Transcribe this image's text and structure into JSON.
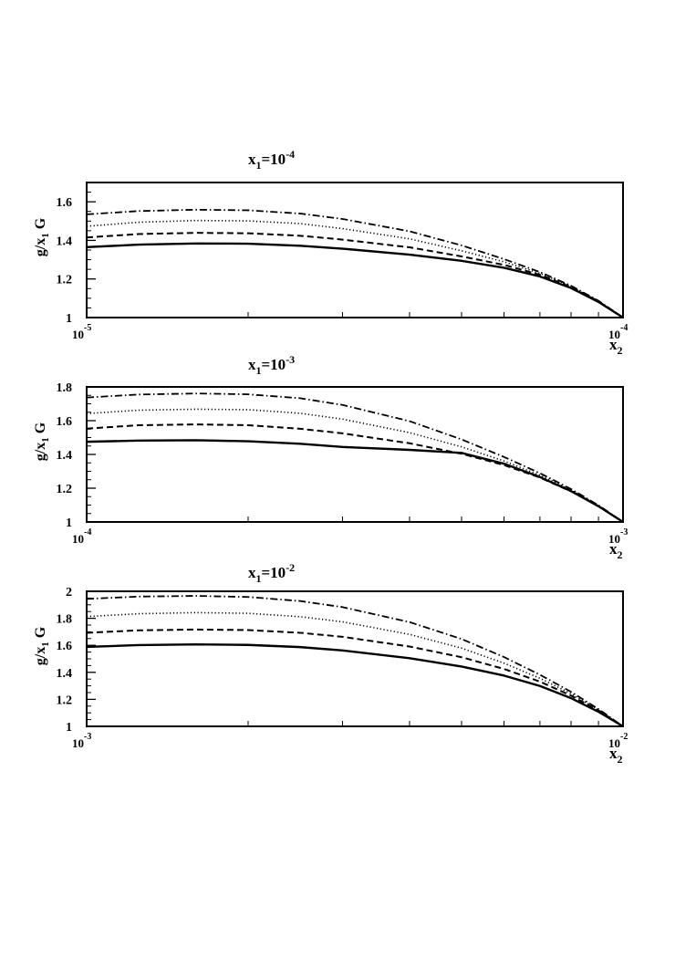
{
  "chart_data": [
    {
      "type": "line",
      "title": {
        "base": "x",
        "sub": "1",
        "mid": "=10",
        "sup": "-4"
      },
      "ylabel": {
        "base": "g/x",
        "sub": "1",
        "tail": " G"
      },
      "xlabel": {
        "base": "x",
        "sub": "2"
      },
      "xscale": "log",
      "xlim": [
        1e-05,
        0.0001
      ],
      "ylim": [
        1.0,
        1.7
      ],
      "yticks": [
        "1",
        "1.2",
        "1.4",
        "1.6"
      ],
      "xtick_labels": [
        {
          "base": "10",
          "sup": "-5"
        },
        {
          "base": "10",
          "sup": "-4"
        }
      ],
      "series": [
        {
          "style": "solid",
          "points": [
            [
              1e-05,
              1.365
            ],
            [
              1.25e-05,
              1.378
            ],
            [
              1.6e-05,
              1.384
            ],
            [
              2e-05,
              1.383
            ],
            [
              2.5e-05,
              1.372
            ],
            [
              3e-05,
              1.357
            ],
            [
              4e-05,
              1.326
            ],
            [
              5e-05,
              1.294
            ],
            [
              6e-05,
              1.258
            ],
            [
              7e-05,
              1.213
            ],
            [
              8e-05,
              1.153
            ],
            [
              9e-05,
              1.081
            ],
            [
              0.0001,
              1.0
            ]
          ]
        },
        {
          "style": "dashed",
          "points": [
            [
              1e-05,
              1.415
            ],
            [
              1.25e-05,
              1.433
            ],
            [
              1.6e-05,
              1.439
            ],
            [
              2e-05,
              1.437
            ],
            [
              2.5e-05,
              1.424
            ],
            [
              3e-05,
              1.404
            ],
            [
              4e-05,
              1.364
            ],
            [
              5e-05,
              1.317
            ],
            [
              6e-05,
              1.273
            ],
            [
              7e-05,
              1.222
            ],
            [
              8e-05,
              1.158
            ],
            [
              9e-05,
              1.084
            ],
            [
              0.0001,
              1.0
            ]
          ]
        },
        {
          "style": "dotted",
          "points": [
            [
              1e-05,
              1.473
            ],
            [
              1.25e-05,
              1.494
            ],
            [
              1.6e-05,
              1.503
            ],
            [
              2e-05,
              1.501
            ],
            [
              2.5e-05,
              1.487
            ],
            [
              3e-05,
              1.461
            ],
            [
              4e-05,
              1.408
            ],
            [
              5e-05,
              1.346
            ],
            [
              6e-05,
              1.289
            ],
            [
              7e-05,
              1.229
            ],
            [
              8e-05,
              1.162
            ],
            [
              9e-05,
              1.085
            ],
            [
              0.0001,
              1.0
            ]
          ]
        },
        {
          "style": "dashdot",
          "points": [
            [
              1e-05,
              1.535
            ],
            [
              1.25e-05,
              1.552
            ],
            [
              1.6e-05,
              1.559
            ],
            [
              2e-05,
              1.556
            ],
            [
              2.5e-05,
              1.539
            ],
            [
              3e-05,
              1.511
            ],
            [
              4e-05,
              1.447
            ],
            [
              5e-05,
              1.374
            ],
            [
              6e-05,
              1.303
            ],
            [
              7e-05,
              1.236
            ],
            [
              8e-05,
              1.165
            ],
            [
              9e-05,
              1.087
            ],
            [
              0.0001,
              1.0
            ]
          ]
        }
      ]
    },
    {
      "type": "line",
      "title": {
        "base": "x",
        "sub": "1",
        "mid": "=10",
        "sup": "-3"
      },
      "ylabel": {
        "base": "g/x",
        "sub": "1",
        "tail": " G"
      },
      "xlabel": {
        "base": "x",
        "sub": "2"
      },
      "xscale": "log",
      "xlim": [
        0.0001,
        0.001
      ],
      "ylim": [
        1.0,
        1.8
      ],
      "yticks": [
        "1",
        "1.2",
        "1.4",
        "1.6",
        "1.8"
      ],
      "xtick_labels": [
        {
          "base": "10",
          "sup": "-4"
        },
        {
          "base": "10",
          "sup": "-3"
        }
      ],
      "series": [
        {
          "style": "solid",
          "points": [
            [
              0.0001,
              1.475
            ],
            [
              0.000125,
              1.482
            ],
            [
              0.00016,
              1.484
            ],
            [
              0.0002,
              1.478
            ],
            [
              0.00025,
              1.463
            ],
            [
              0.0003,
              1.444
            ],
            [
              0.0004,
              1.427
            ],
            [
              0.0005,
              1.409
            ],
            [
              0.0006,
              1.345
            ],
            [
              0.0007,
              1.266
            ],
            [
              0.0008,
              1.183
            ],
            [
              0.0009,
              1.093
            ],
            [
              0.001,
              1.0
            ]
          ]
        },
        {
          "style": "dashed",
          "points": [
            [
              0.0001,
              1.553
            ],
            [
              0.000125,
              1.573
            ],
            [
              0.00016,
              1.578
            ],
            [
              0.0002,
              1.573
            ],
            [
              0.00025,
              1.552
            ],
            [
              0.0003,
              1.525
            ],
            [
              0.0004,
              1.466
            ],
            [
              0.0005,
              1.404
            ],
            [
              0.0006,
              1.337
            ],
            [
              0.0007,
              1.263
            ],
            [
              0.0008,
              1.181
            ],
            [
              0.0009,
              1.093
            ],
            [
              0.001,
              1.0
            ]
          ]
        },
        {
          "style": "dotted",
          "points": [
            [
              0.0001,
              1.642
            ],
            [
              0.000125,
              1.662
            ],
            [
              0.00016,
              1.668
            ],
            [
              0.0002,
              1.665
            ],
            [
              0.00025,
              1.644
            ],
            [
              0.0003,
              1.609
            ],
            [
              0.0004,
              1.529
            ],
            [
              0.0005,
              1.445
            ],
            [
              0.0006,
              1.361
            ],
            [
              0.0007,
              1.277
            ],
            [
              0.0008,
              1.189
            ],
            [
              0.0009,
              1.096
            ],
            [
              0.001,
              1.0
            ]
          ]
        },
        {
          "style": "dashdot",
          "points": [
            [
              0.0001,
              1.737
            ],
            [
              0.000125,
              1.755
            ],
            [
              0.00016,
              1.761
            ],
            [
              0.0002,
              1.756
            ],
            [
              0.00025,
              1.733
            ],
            [
              0.0003,
              1.693
            ],
            [
              0.0004,
              1.597
            ],
            [
              0.0005,
              1.489
            ],
            [
              0.0006,
              1.385
            ],
            [
              0.0007,
              1.289
            ],
            [
              0.0008,
              1.195
            ],
            [
              0.0009,
              1.099
            ],
            [
              0.001,
              1.0
            ]
          ]
        }
      ]
    },
    {
      "type": "line",
      "title": {
        "base": "x",
        "sub": "1",
        "mid": "=10",
        "sup": "-2"
      },
      "ylabel": {
        "base": "g/x",
        "sub": "1",
        "tail": " G"
      },
      "xlabel": {
        "base": "x",
        "sub": "2"
      },
      "xscale": "log",
      "xlim": [
        0.001,
        0.01
      ],
      "ylim": [
        1.0,
        2.0
      ],
      "yticks": [
        "1",
        "1.2",
        "1.4",
        "1.6",
        "1.8",
        "2"
      ],
      "xtick_labels": [
        {
          "base": "10",
          "sup": "-3"
        },
        {
          "base": "10",
          "sup": "-2"
        }
      ],
      "series": [
        {
          "style": "solid",
          "points": [
            [
              0.001,
              1.588
            ],
            [
              0.00125,
              1.602
            ],
            [
              0.0016,
              1.607
            ],
            [
              0.002,
              1.603
            ],
            [
              0.0025,
              1.587
            ],
            [
              0.003,
              1.562
            ],
            [
              0.004,
              1.505
            ],
            [
              0.005,
              1.443
            ],
            [
              0.006,
              1.376
            ],
            [
              0.007,
              1.299
            ],
            [
              0.008,
              1.209
            ],
            [
              0.009,
              1.108
            ],
            [
              0.01,
              1.0
            ]
          ]
        },
        {
          "style": "dashed",
          "points": [
            [
              0.001,
              1.693
            ],
            [
              0.00125,
              1.711
            ],
            [
              0.0016,
              1.717
            ],
            [
              0.002,
              1.713
            ],
            [
              0.0025,
              1.693
            ],
            [
              0.003,
              1.663
            ],
            [
              0.004,
              1.591
            ],
            [
              0.005,
              1.512
            ],
            [
              0.006,
              1.425
            ],
            [
              0.007,
              1.331
            ],
            [
              0.008,
              1.228
            ],
            [
              0.009,
              1.117
            ],
            [
              0.01,
              1.0
            ]
          ]
        },
        {
          "style": "dotted",
          "points": [
            [
              0.001,
              1.813
            ],
            [
              0.00125,
              1.834
            ],
            [
              0.0016,
              1.842
            ],
            [
              0.002,
              1.837
            ],
            [
              0.0025,
              1.812
            ],
            [
              0.003,
              1.774
            ],
            [
              0.004,
              1.681
            ],
            [
              0.005,
              1.579
            ],
            [
              0.006,
              1.468
            ],
            [
              0.007,
              1.356
            ],
            [
              0.008,
              1.242
            ],
            [
              0.009,
              1.122
            ],
            [
              0.01,
              1.0
            ]
          ]
        },
        {
          "style": "dashdot",
          "points": [
            [
              0.001,
              1.944
            ],
            [
              0.00125,
              1.961
            ],
            [
              0.0016,
              1.966
            ],
            [
              0.002,
              1.958
            ],
            [
              0.0025,
              1.928
            ],
            [
              0.003,
              1.883
            ],
            [
              0.004,
              1.772
            ],
            [
              0.005,
              1.647
            ],
            [
              0.006,
              1.513
            ],
            [
              0.007,
              1.382
            ],
            [
              0.008,
              1.256
            ],
            [
              0.009,
              1.128
            ],
            [
              0.01,
              1.0
            ]
          ]
        }
      ]
    }
  ]
}
